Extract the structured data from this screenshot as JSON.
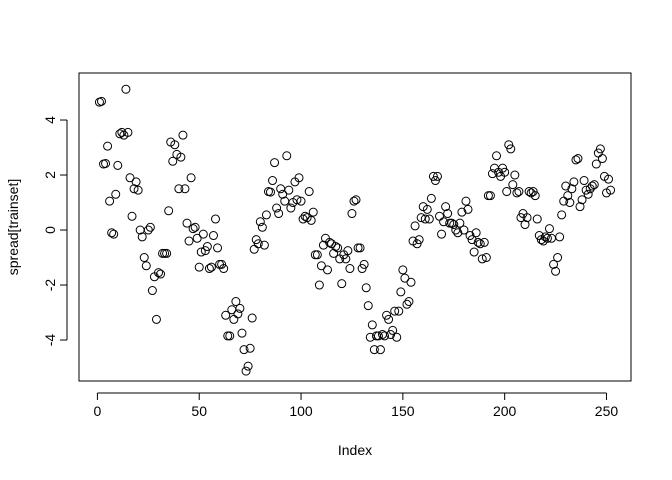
{
  "chart_data": {
    "type": "scatter",
    "x_label": "Index",
    "y_label": "spread[trainset]",
    "color": "#000000",
    "xlim": [
      -9.04,
      262.04
    ],
    "xticks": [
      0,
      50,
      100,
      150,
      200,
      250
    ],
    "ylim": [
      -5.49,
      5.71
    ],
    "yticks": [
      -4,
      -2,
      0,
      2,
      4
    ],
    "x": [
      1,
      2,
      3,
      4,
      5,
      6,
      7,
      8,
      9,
      10,
      11,
      12,
      13,
      14,
      15,
      16,
      17,
      18,
      19,
      20,
      21,
      22,
      23,
      24,
      25,
      26,
      27,
      28,
      29,
      30,
      31,
      32,
      33,
      34,
      35,
      36,
      37,
      38,
      39,
      40,
      41,
      42,
      43,
      44,
      45,
      46,
      47,
      48,
      49,
      50,
      51,
      52,
      53,
      54,
      55,
      56,
      57,
      58,
      59,
      60,
      61,
      62,
      63,
      64,
      65,
      66,
      67,
      68,
      69,
      70,
      71,
      72,
      73,
      74,
      75,
      76,
      77,
      78,
      79,
      80,
      81,
      82,
      83,
      84,
      85,
      86,
      87,
      88,
      89,
      90,
      91,
      92,
      93,
      94,
      95,
      96,
      97,
      98,
      99,
      100,
      101,
      102,
      103,
      104,
      105,
      106,
      107,
      108,
      109,
      110,
      111,
      112,
      113,
      114,
      115,
      116,
      117,
      118,
      119,
      120,
      121,
      122,
      123,
      124,
      125,
      126,
      127,
      128,
      129,
      130,
      131,
      132,
      133,
      134,
      135,
      136,
      137,
      138,
      139,
      140,
      141,
      142,
      143,
      144,
      145,
      146,
      147,
      148,
      149,
      150,
      151,
      152,
      153,
      154,
      155,
      156,
      157,
      158,
      159,
      160,
      161,
      162,
      163,
      164,
      165,
      166,
      167,
      168,
      169,
      170,
      171,
      172,
      173,
      174,
      175,
      176,
      177,
      178,
      179,
      180,
      181,
      182,
      183,
      184,
      185,
      186,
      187,
      188,
      189,
      190,
      191,
      192,
      193,
      194,
      195,
      196,
      197,
      198,
      199,
      200,
      201,
      202,
      203,
      204,
      205,
      206,
      207,
      208,
      209,
      210,
      211,
      212,
      213,
      214,
      215,
      216,
      217,
      218,
      219,
      220,
      221,
      222,
      223,
      224,
      225,
      226,
      227,
      228,
      229,
      230,
      231,
      232,
      233,
      234,
      235,
      236,
      237,
      238,
      239,
      240,
      241,
      242,
      243,
      244,
      245,
      246,
      247,
      248,
      249,
      250,
      251,
      252
    ],
    "values": [
      4.65,
      4.68,
      2.4,
      2.42,
      3.05,
      1.05,
      -0.1,
      -0.15,
      1.3,
      2.35,
      3.5,
      3.55,
      3.45,
      5.12,
      3.55,
      1.9,
      0.5,
      1.5,
      1.75,
      1.45,
      0.0,
      -0.25,
      -1.0,
      -1.3,
      0.0,
      0.1,
      -2.2,
      -1.7,
      -3.25,
      -1.55,
      -1.6,
      -0.85,
      -0.85,
      -0.85,
      0.7,
      3.2,
      2.5,
      3.1,
      2.75,
      1.5,
      2.65,
      3.45,
      1.5,
      0.25,
      -0.4,
      1.9,
      0.05,
      0.1,
      -0.3,
      -1.35,
      -0.8,
      -0.15,
      -0.75,
      -0.6,
      -1.4,
      -1.35,
      -0.2,
      0.4,
      -0.65,
      -1.25,
      -1.25,
      -1.4,
      -3.1,
      -3.85,
      -3.85,
      -2.9,
      -3.25,
      -2.6,
      -3.05,
      -2.85,
      -3.75,
      -4.35,
      -5.13,
      -4.95,
      -4.3,
      -3.2,
      -0.7,
      -0.35,
      -0.5,
      0.3,
      0.1,
      -0.55,
      0.55,
      1.4,
      1.38,
      1.8,
      2.45,
      0.8,
      0.6,
      1.5,
      1.3,
      1.05,
      2.7,
      1.45,
      0.8,
      1.0,
      1.75,
      1.1,
      1.9,
      1.05,
      0.4,
      0.5,
      0.45,
      1.4,
      0.35,
      0.65,
      -0.9,
      -0.9,
      -2.0,
      -1.3,
      -0.55,
      -0.3,
      -1.45,
      -0.45,
      -0.5,
      -0.85,
      -0.6,
      -0.65,
      -1.05,
      -1.95,
      -0.9,
      -1.05,
      -0.75,
      -1.4,
      0.6,
      1.05,
      1.1,
      -0.65,
      -0.65,
      -1.4,
      -1.25,
      -2.1,
      -2.75,
      -3.9,
      -3.45,
      -4.35,
      -3.85,
      -3.85,
      -4.35,
      -3.8,
      -3.85,
      -3.1,
      -3.25,
      -3.8,
      -3.65,
      -2.95,
      -3.9,
      -2.95,
      -2.25,
      -1.45,
      -1.75,
      -2.7,
      -2.6,
      -1.9,
      -0.4,
      0.15,
      -0.5,
      -0.35,
      0.45,
      0.85,
      0.4,
      0.75,
      0.4,
      1.15,
      1.95,
      1.8,
      1.95,
      0.5,
      -0.15,
      0.3,
      0.85,
      0.6,
      0.25,
      0.25,
      0.2,
      0.0,
      -0.1,
      0.25,
      0.65,
      0.0,
      1.05,
      0.75,
      -0.2,
      -0.35,
      -0.8,
      -0.1,
      -0.45,
      -0.5,
      -1.05,
      -0.45,
      -1.0,
      1.25,
      1.25,
      2.05,
      2.25,
      2.7,
      2.1,
      1.95,
      2.25,
      2.1,
      1.4,
      3.1,
      2.95,
      1.65,
      2.0,
      1.35,
      1.4,
      0.45,
      0.6,
      0.2,
      0.45,
      1.4,
      1.35,
      1.4,
      1.25,
      0.4,
      -0.2,
      -0.35,
      -0.4,
      -0.25,
      -0.3,
      0.05,
      -0.3,
      -1.25,
      -1.5,
      -1.0,
      -0.25,
      0.55,
      1.05,
      1.6,
      1.25,
      1.0,
      1.5,
      1.75,
      2.55,
      2.6,
      0.85,
      1.1,
      1.8,
      1.45,
      1.3,
      1.5,
      1.6,
      1.65,
      2.4,
      2.8,
      2.95,
      2.6,
      1.95,
      1.35,
      1.85,
      1.45
    ]
  }
}
